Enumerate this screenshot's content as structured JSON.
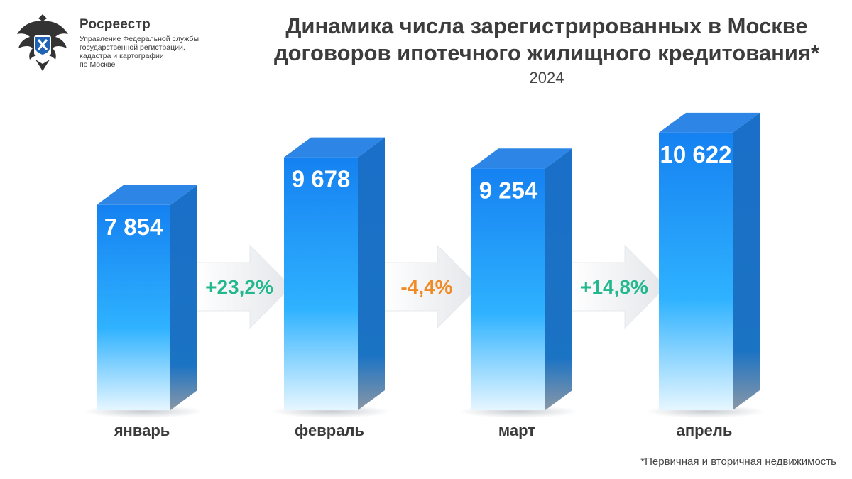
{
  "header": {
    "org_name": "Росреестр",
    "org_subtitle": [
      "Управление Федеральной службы",
      "государственной регистрации,",
      "кадастра и картографии",
      "по Москве"
    ],
    "title_line1": "Динамика числа зарегистрированных в Москве",
    "title_line2": "договоров ипотечного жилищного кредитования*",
    "year": "2024"
  },
  "chart_data": {
    "type": "bar",
    "title": "Динамика числа зарегистрированных в Москве договоров ипотечного жилищного кредитования*",
    "subtitle": "2024",
    "categories": [
      "январь",
      "февраль",
      "март",
      "апрель"
    ],
    "values": [
      7854,
      9678,
      9254,
      10622
    ],
    "value_labels": [
      "7 854",
      "9 678",
      "9 254",
      "10 622"
    ],
    "changes": [
      {
        "label": "+23,2%",
        "color": "#23b88e"
      },
      {
        "label": "-4,4%",
        "color": "#f08a24"
      },
      {
        "label": "+14,8%",
        "color": "#23b88e"
      }
    ],
    "ylim": [
      0,
      11000
    ],
    "grid": false,
    "legend": "none"
  },
  "colors": {
    "bar_front_top": "#1581f1",
    "bar_front_mid": "#2fb2ff",
    "bar_front_bottom": "#e6f6ff",
    "bar_side": "#1a6fc8",
    "bar_top": "#2d86e6",
    "logo_blue": "#1f63b4"
  },
  "footnote": "*Первичная и вторичная недвижимость"
}
